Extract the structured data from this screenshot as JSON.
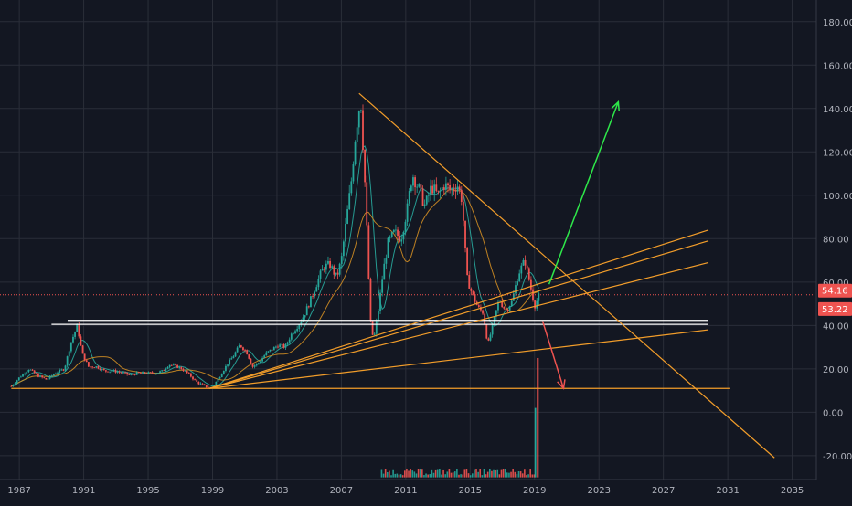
{
  "colors": {
    "background": "#131722",
    "grid": "#2a2e39",
    "axis_text": "#b2b5be",
    "candle_up": "#26a69a",
    "candle_down": "#ef5350",
    "trendline": "#f29d2a",
    "support": "#ffffff",
    "price_line": "#ef5350",
    "green_arrow": "#2ee84a",
    "red_arrow": "#ef5350",
    "ma_fast": "#2ab3a6",
    "ma_slow": "#d08d24"
  },
  "chart_data": {
    "type": "line",
    "subtype": "candlestick price chart with trend lines",
    "title": "",
    "xlabel": "",
    "ylabel": "",
    "x_ticks": [
      "1987",
      "1991",
      "1995",
      "1999",
      "2003",
      "2007",
      "2011",
      "2015",
      "2019",
      "2023",
      "2027",
      "2031",
      "2035"
    ],
    "y_ticks": [
      "180.00",
      "160.00",
      "140.00",
      "120.00",
      "100.00",
      "80.00",
      "60.00",
      "40.00",
      "20.00",
      "0.00",
      "-20.00"
    ],
    "xlim": [
      1985.8,
      2036.5
    ],
    "ylim": [
      -31,
      190
    ],
    "grid": true,
    "price_labels": [
      {
        "text": "54.16",
        "value": 54.16
      },
      {
        "text": "53.22",
        "value": 53.22
      }
    ],
    "series": [
      {
        "x": [
          1986.5,
          1987.0,
          1987.6,
          1988.1,
          1988.7,
          1989.2,
          1989.8,
          1990.2,
          1990.6,
          1990.9,
          1991.3,
          1991.8,
          1992.3,
          1992.9,
          1993.5,
          1993.9,
          1994.3,
          1994.9,
          1995.4,
          1995.9,
          1996.3,
          1996.8,
          1997.1,
          1997.6,
          1998.0,
          1998.5,
          1998.95,
          1999.4,
          1999.9,
          2000.3,
          2000.7,
          2001.1,
          2001.5,
          2001.9,
          2002.3,
          2002.7,
          2003.1,
          2003.5,
          2003.9,
          2004.3,
          2004.7,
          2005.1,
          2005.5,
          2005.9,
          2006.3,
          2006.7,
          2007.0,
          2007.3,
          2007.6,
          2007.9,
          2008.2,
          2008.5,
          2008.8,
          2009.0,
          2009.3,
          2009.6,
          2009.9,
          2010.3,
          2010.7,
          2011.1,
          2011.4,
          2011.8,
          2012.2,
          2012.6,
          2013.0,
          2013.4,
          2013.8,
          2014.2,
          2014.5,
          2014.8,
          2015.1,
          2015.5,
          2015.8,
          2016.1,
          2016.4,
          2016.8,
          2017.2,
          2017.6,
          2018.0,
          2018.4,
          2018.75,
          2019.0,
          2019.3
        ],
        "y": [
          12,
          16,
          20,
          17,
          15,
          18,
          20,
          32,
          40,
          27,
          21,
          21,
          19,
          19,
          18,
          17,
          18,
          18,
          18,
          19,
          22,
          21,
          20,
          17,
          14,
          12,
          11,
          16,
          22,
          26,
          31,
          28,
          21,
          23,
          27,
          29,
          31,
          30,
          36,
          40,
          45,
          52,
          60,
          67,
          68,
          62,
          70,
          88,
          105,
          130,
          145,
          100,
          42,
          33,
          47,
          65,
          78,
          83,
          80,
          94,
          110,
          103,
          95,
          104,
          100,
          105,
          102,
          105,
          98,
          62,
          55,
          48,
          46,
          31,
          40,
          52,
          47,
          51,
          64,
          70,
          58,
          49,
          54
        ]
      }
    ],
    "support_levels": [
      40.5,
      41.5,
      11
    ],
    "trendlines": [
      {
        "x": [
          2008.1,
          2033.9
        ],
        "y": [
          147,
          -21
        ]
      },
      {
        "x": [
          1998.8,
          2029.8
        ],
        "y": [
          11,
          84
        ]
      },
      {
        "x": [
          1998.8,
          2029.8
        ],
        "y": [
          11,
          79
        ]
      },
      {
        "x": [
          1998.8,
          2029.8
        ],
        "y": [
          11,
          69
        ]
      },
      {
        "x": [
          1998.8,
          2029.8
        ],
        "y": [
          11,
          38
        ]
      },
      {
        "x": [
          1986.5,
          2031.1
        ],
        "y": [
          11,
          11
        ]
      }
    ],
    "projections": [
      {
        "direction": "up",
        "x": [
          2019.9,
          2024.2
        ],
        "y": [
          59,
          143
        ]
      },
      {
        "direction": "down",
        "x": [
          2019.5,
          2020.8
        ],
        "y": [
          42,
          11
        ]
      }
    ],
    "volume_spike": {
      "x": 2019.2,
      "value": 25
    }
  }
}
